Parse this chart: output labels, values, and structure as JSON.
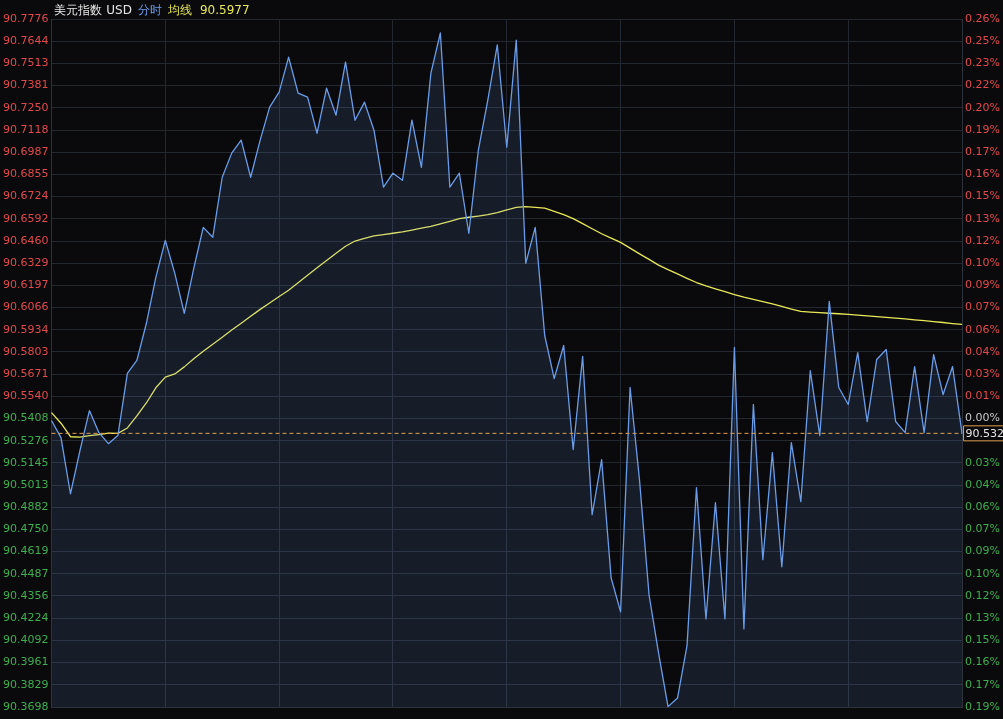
{
  "chart_data": {
    "type": "area",
    "title": "美元指数 USD",
    "annotations": [
      "90.5977"
    ],
    "categories": [
      null,
      null,
      null,
      null,
      null,
      null,
      null,
      null,
      null,
      null,
      null,
      null,
      null,
      null,
      null,
      null,
      null,
      null,
      null,
      null,
      null,
      null,
      null,
      null,
      null,
      null,
      null,
      null,
      null,
      null,
      null,
      null,
      null,
      null,
      null,
      null,
      null,
      null,
      null,
      null,
      null,
      null,
      null,
      null,
      null,
      null,
      null,
      null,
      null,
      null,
      null,
      null,
      null,
      null,
      null,
      null,
      null,
      null,
      null,
      null,
      null,
      null,
      null,
      null,
      null,
      null,
      null,
      null,
      null,
      null,
      null,
      null,
      null,
      null,
      null,
      null,
      null,
      null,
      null,
      null,
      null,
      null,
      null,
      null,
      null,
      null,
      null,
      null,
      null,
      null,
      null,
      null,
      null,
      null,
      null,
      null,
      null
    ],
    "series": [
      {
        "name": "分时",
        "color": "#6a9ce8",
        "values": [
          90.5396,
          90.5295,
          90.4962,
          90.5218,
          90.5455,
          90.5324,
          90.5259,
          90.5307,
          90.5675,
          90.5752,
          90.5971,
          90.6244,
          90.6464,
          90.6268,
          90.6031,
          90.6298,
          90.6541,
          90.6482,
          90.6838,
          90.6981,
          90.7058,
          90.6838,
          90.7058,
          90.7254,
          90.7343,
          90.755,
          90.7337,
          90.7313,
          90.7099,
          90.7366,
          90.7206,
          90.7521,
          90.7176,
          90.7283,
          90.7117,
          90.6779,
          90.6862,
          90.682,
          90.7176,
          90.6897,
          90.7455,
          90.7693,
          90.6779,
          90.6862,
          90.6506,
          90.6998,
          90.7295,
          90.7622,
          90.7016,
          90.7651,
          90.6328,
          90.6541,
          90.59,
          90.5645,
          90.5841,
          90.5224,
          90.5776,
          90.4838,
          90.5164,
          90.4464,
          90.4262,
          90.5592,
          90.5039,
          90.4363,
          90.4019,
          90.37,
          90.3751,
          90.406,
          90.4998,
          90.422,
          90.4909,
          90.422,
          90.5829,
          90.4161,
          90.5491,
          90.4571,
          90.5206,
          90.4529,
          90.5265,
          90.4915,
          90.5692,
          90.5307,
          90.6102,
          90.5592,
          90.5491,
          90.5799,
          90.539,
          90.5758,
          90.5817,
          90.539,
          90.5324,
          90.5716,
          90.5324,
          90.5787,
          90.555,
          90.5716,
          90.5318
        ]
      },
      {
        "name": "均线",
        "type": "line",
        "color": "#e8e85a",
        "values": [
          90.5443,
          90.538,
          90.53,
          90.5298,
          90.5306,
          90.5313,
          90.5321,
          90.532,
          90.5352,
          90.5424,
          90.55,
          90.559,
          90.5653,
          90.5672,
          90.5714,
          90.5762,
          90.5807,
          90.5848,
          90.589,
          90.5932,
          90.5973,
          90.6014,
          90.6055,
          90.6093,
          90.6131,
          90.6168,
          90.6212,
          90.6257,
          90.6302,
          90.6345,
          90.6387,
          90.6429,
          90.646,
          90.6476,
          90.649,
          90.6498,
          90.6506,
          90.6514,
          90.6525,
          90.6536,
          90.6547,
          90.6562,
          90.6577,
          90.6593,
          90.6601,
          90.6608,
          90.6616,
          90.6628,
          90.6644,
          90.6659,
          90.6664,
          90.6659,
          90.6655,
          90.6636,
          90.6616,
          90.6593,
          90.6563,
          90.6533,
          90.6503,
          90.6477,
          90.6452,
          90.6418,
          90.6384,
          90.6351,
          90.6317,
          90.629,
          90.6265,
          90.6239,
          90.6214,
          90.6194,
          90.6177,
          90.616,
          90.6143,
          90.6127,
          90.6114,
          90.6101,
          90.6087,
          90.6072,
          90.6057,
          90.6043,
          90.6039,
          90.6036,
          90.6032,
          90.6029,
          90.6025,
          90.6021,
          90.6016,
          90.6012,
          90.6007,
          90.6003,
          90.5998,
          90.5993,
          90.5988,
          90.5982,
          90.5977,
          90.5971,
          90.5966
        ]
      }
    ],
    "ylim": [
      90.3698,
      90.7776
    ],
    "yticks": [
      90.7776,
      90.7644,
      90.7513,
      90.7381,
      {
        "value": 90.725,
        "label": "90.7250"
      },
      90.7118,
      90.6987,
      90.6855,
      90.6724,
      90.6592,
      {
        "value": 90.646,
        "label": "90.6460"
      },
      90.6329,
      90.6197,
      90.6066,
      90.5934,
      90.5803,
      90.5671,
      {
        "value": 90.554,
        "label": "90.5540"
      },
      90.5408,
      90.5276,
      90.5145,
      90.5013,
      90.4882,
      {
        "value": 90.475,
        "label": "90.4750"
      },
      90.4619,
      90.4487,
      90.4356,
      90.4224,
      90.4092,
      90.3961,
      90.3829,
      90.3698
    ],
    "y2lim": [
      -0.1889,
      0.2615
    ],
    "y2ticks": [
      {
        "value": 0.2615,
        "label": "0.26%"
      },
      {
        "value": 0.247,
        "label": "0.25%"
      },
      {
        "value": 0.2325,
        "label": "0.23%"
      },
      {
        "value": 0.2179,
        "label": "0.22%"
      },
      {
        "value": 0.2034,
        "label": "0.20%"
      },
      {
        "value": 0.1889,
        "label": "0.19%"
      },
      {
        "value": 0.1744,
        "label": "0.17%"
      },
      {
        "value": 0.1598,
        "label": "0.16%"
      },
      {
        "value": 0.1453,
        "label": "0.15%"
      },
      {
        "value": 0.1308,
        "label": "0.13%"
      },
      {
        "value": 0.1162,
        "label": "0.12%"
      },
      {
        "value": 0.1017,
        "label": "0.10%"
      },
      {
        "value": 0.0871,
        "label": "0.09%"
      },
      {
        "value": 0.0727,
        "label": "0.07%"
      },
      {
        "value": 0.0581,
        "label": "0.06%"
      },
      {
        "value": 0.0436,
        "label": "0.04%"
      },
      {
        "value": 0.029,
        "label": "0.03%"
      },
      {
        "value": 0.0146,
        "label": "0.01%"
      },
      {
        "value": 0,
        "label": "0.00%"
      },
      {
        "value": -0.029,
        "label": "0.03%"
      },
      {
        "value": -0.0436,
        "label": "0.04%"
      },
      {
        "value": -0.0581,
        "label": "0.06%"
      },
      {
        "value": -0.0727,
        "label": "0.07%"
      },
      {
        "value": -0.0871,
        "label": "0.09%"
      },
      {
        "value": -0.1017,
        "label": "0.10%"
      },
      {
        "value": -0.1162,
        "label": "0.12%"
      },
      {
        "value": -0.1308,
        "label": "0.13%"
      },
      {
        "value": -0.1453,
        "label": "0.15%"
      },
      {
        "value": -0.1598,
        "label": "0.16%"
      },
      {
        "value": -0.1744,
        "label": "0.17%"
      },
      {
        "value": -0.1889,
        "label": "0.19%"
      }
    ],
    "tick_labels": "y",
    "grid": true,
    "marker": "none",
    "ref_lines": [
      {
        "axis": "y",
        "value": 90.532,
        "label": "90.532",
        "color": "#e0a050",
        "line_style": "dashed"
      }
    ]
  }
}
